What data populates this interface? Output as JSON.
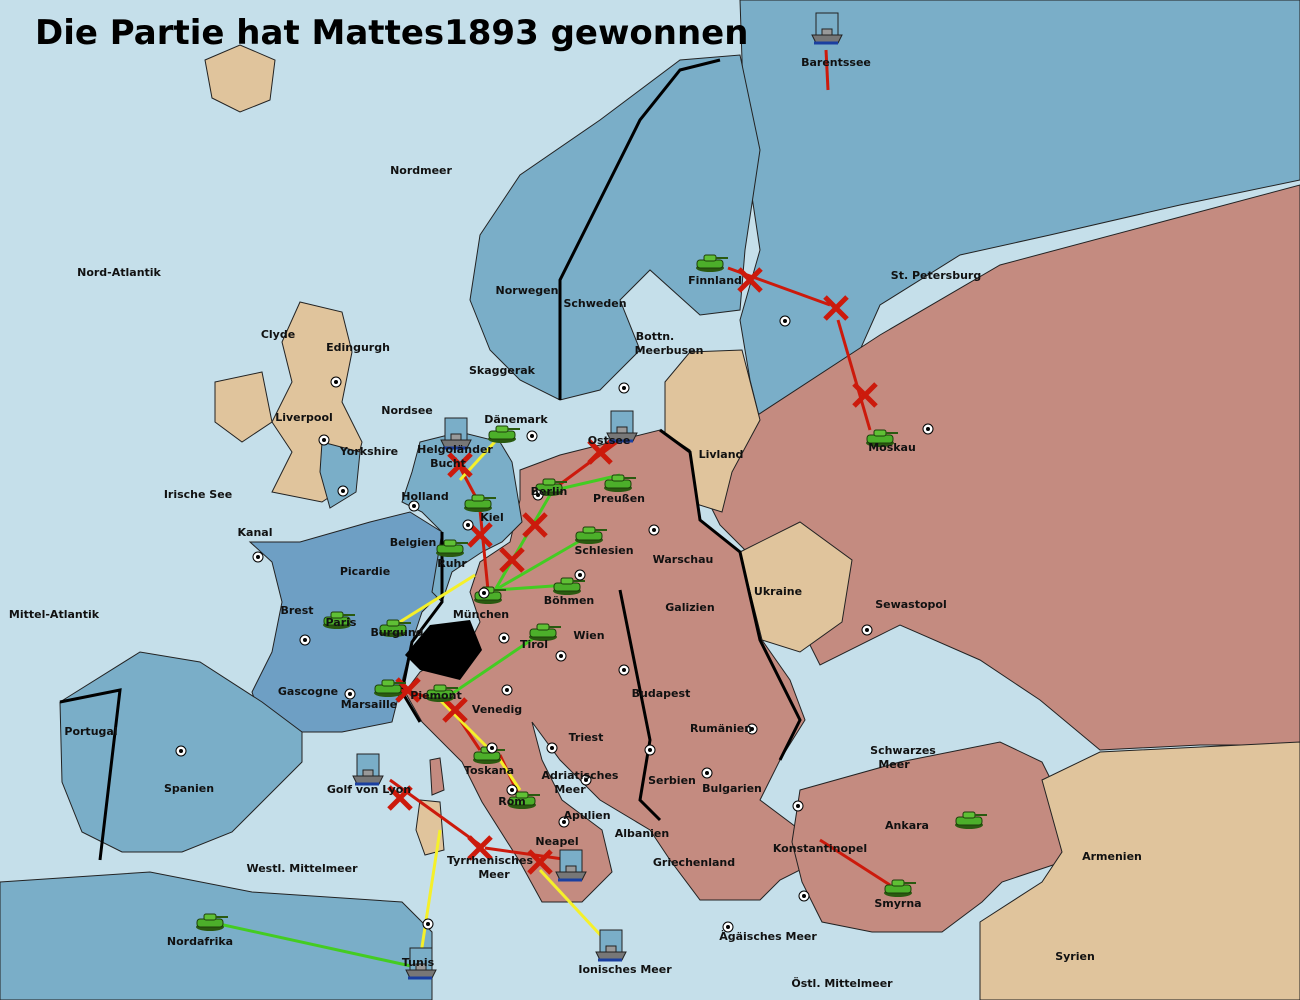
{
  "title": "Die Partie hat Mattes1893 gewonnen",
  "colors": {
    "sea": "#c5dfea",
    "power_blue": "#7aaec8",
    "power_france_blue": "#6e9fc4",
    "power_red": "#c48b80",
    "neutral": "#e0c49c",
    "impassable": "#000000",
    "move_order": "#cc1a0c",
    "support_order": "#44cc22",
    "convoy_order": "#f5f02a"
  },
  "regions": [
    "Nordmeer",
    "Nord-Atlantik",
    "Barentssee",
    "St. Petersburg",
    "Finnland",
    "Norwegen",
    "Schweden",
    "Bottn.",
    "Meerbusen",
    "Clyde",
    "Edingurgh",
    "Skaggerak",
    "Nordsee",
    "Liverpool",
    "Dänemark",
    "Yorkshire",
    "Helgoländer",
    "Bucht",
    "Ostsee",
    "Livland",
    "Moskau",
    "Irische See",
    "Holland",
    "Berlin",
    "Preußen",
    "Kiel",
    "Kanal",
    "Belgien",
    "Schlesien",
    "Warschau",
    "Ruhr",
    "Picardie",
    "Ukraine",
    "Böhmen",
    "Brest",
    "Galizien",
    "Sewastopol",
    "Mittel-Atlantik",
    "Paris",
    "München",
    "Burgund",
    "Wien",
    "Tirol",
    "Gascogne",
    "Piemont",
    "Budapest",
    "Marsaille",
    "Venedig",
    "Portugal",
    "Rumänien",
    "Triest",
    "Schwarzes",
    "Meer",
    "Toskana",
    "Serbien",
    "Adriatisches",
    "Meer",
    "Spanien",
    "Golf von Lyon",
    "Rom",
    "Bulgarien",
    "Apulien",
    "Ankara",
    "Albanien",
    "Konstantinopel",
    "Neapel",
    "Armenien",
    "Westl. Mittelmeer",
    "Tyrrhenisches",
    "Meer",
    "Griechenland",
    "Smyrna",
    "Ägäisches Meer",
    "Nordafrika",
    "Syrien",
    "Tunis",
    "Ionisches Meer",
    "Östl. Mittelmeer"
  ],
  "units": {
    "armies": [
      "Finnland",
      "Dänemark",
      "Kiel",
      "Berlin",
      "Preußen",
      "Schlesien",
      "Ruhr",
      "München",
      "Böhmen",
      "Tirol",
      "Paris",
      "Burgund",
      "Marsaille",
      "Piemont",
      "Toskana",
      "Rom",
      "Moskau",
      "Ankara",
      "Smyrna",
      "Nordafrika"
    ],
    "fleets": [
      "Barentssee",
      "Helgoländer Bucht",
      "Ostsee",
      "Golf von Lyon",
      "Ionisches Meer",
      "Tunis",
      "Neapel"
    ]
  }
}
